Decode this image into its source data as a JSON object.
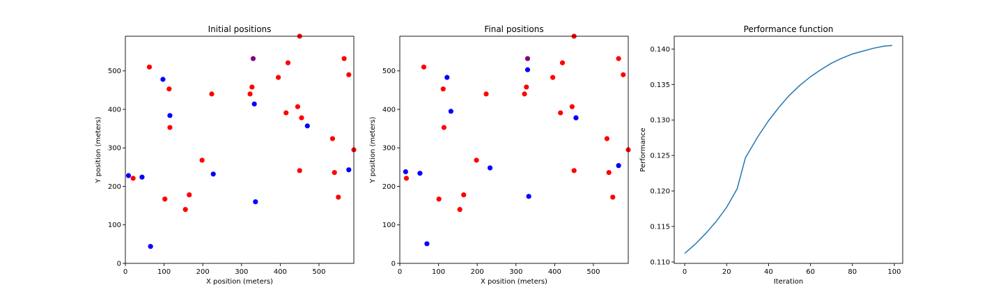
{
  "colors": {
    "red": "#ff0000",
    "blue": "#0000ff",
    "purple": "#800080",
    "line": "#1f77b4"
  },
  "chart_data": [
    {
      "type": "scatter",
      "title": "Initial positions",
      "xlabel": "X position (meters)",
      "ylabel": "Y position (meters)",
      "xlim": [
        0,
        590
      ],
      "ylim": [
        0,
        590
      ],
      "xticks": [
        0,
        100,
        200,
        300,
        400,
        500
      ],
      "yticks": [
        0,
        100,
        200,
        300,
        400,
        500
      ],
      "red_points": [
        [
          20,
          221
        ],
        [
          62,
          510
        ],
        [
          113,
          453
        ],
        [
          115,
          353
        ],
        [
          102,
          167
        ],
        [
          155,
          140
        ],
        [
          165,
          178
        ],
        [
          198,
          268
        ],
        [
          223,
          440
        ],
        [
          322,
          440
        ],
        [
          327,
          458
        ],
        [
          395,
          483
        ],
        [
          420,
          521
        ],
        [
          415,
          391
        ],
        [
          445,
          407
        ],
        [
          455,
          378
        ],
        [
          450,
          241
        ],
        [
          450,
          590
        ],
        [
          535,
          324
        ],
        [
          540,
          236
        ],
        [
          550,
          172
        ],
        [
          565,
          532
        ],
        [
          577,
          490
        ],
        [
          590,
          295
        ]
      ],
      "blue_points": [
        [
          8,
          228
        ],
        [
          43,
          224
        ],
        [
          65,
          44
        ],
        [
          97,
          478
        ],
        [
          115,
          384
        ],
        [
          227,
          232
        ],
        [
          333,
          414
        ],
        [
          336,
          160
        ],
        [
          470,
          357
        ],
        [
          577,
          243
        ]
      ],
      "purple_points": [
        [
          330,
          532
        ]
      ]
    },
    {
      "type": "scatter",
      "title": "Final positions",
      "xlabel": "X position (meters)",
      "ylabel": "Y position (meters)",
      "xlim": [
        0,
        590
      ],
      "ylim": [
        0,
        590
      ],
      "xticks": [
        0,
        100,
        200,
        300,
        400,
        500
      ],
      "yticks": [
        0,
        100,
        200,
        300,
        400,
        500
      ],
      "red_points": [
        [
          17,
          221
        ],
        [
          62,
          510
        ],
        [
          112,
          453
        ],
        [
          114,
          353
        ],
        [
          101,
          167
        ],
        [
          155,
          140
        ],
        [
          165,
          178
        ],
        [
          198,
          268
        ],
        [
          223,
          440
        ],
        [
          322,
          440
        ],
        [
          327,
          458
        ],
        [
          395,
          483
        ],
        [
          420,
          521
        ],
        [
          415,
          391
        ],
        [
          445,
          407
        ],
        [
          455,
          378
        ],
        [
          450,
          241
        ],
        [
          450,
          590
        ],
        [
          535,
          324
        ],
        [
          540,
          236
        ],
        [
          550,
          172
        ],
        [
          565,
          532
        ],
        [
          577,
          490
        ],
        [
          590,
          295
        ]
      ],
      "blue_points": [
        [
          15,
          238
        ],
        [
          52,
          234
        ],
        [
          70,
          51
        ],
        [
          122,
          483
        ],
        [
          132,
          395
        ],
        [
          233,
          248
        ],
        [
          330,
          503
        ],
        [
          333,
          174
        ],
        [
          455,
          378
        ],
        [
          565,
          254
        ]
      ],
      "purple_points": [
        [
          330,
          532
        ]
      ]
    },
    {
      "type": "line",
      "title": "Performance function",
      "xlabel": "Iteration",
      "ylabel": "Performance",
      "xlim": [
        -5,
        104
      ],
      "ylim": [
        0.1098,
        0.1418
      ],
      "xticks": [
        0,
        20,
        40,
        60,
        80,
        100
      ],
      "yticks": [
        "0.110",
        "0.115",
        "0.120",
        "0.125",
        "0.130",
        "0.135",
        "0.140"
      ],
      "series": [
        {
          "x": [
            0,
            5,
            10,
            15,
            20,
            25,
            29,
            30,
            35,
            40,
            45,
            50,
            55,
            60,
            65,
            70,
            75,
            80,
            85,
            90,
            95,
            99
          ],
          "y": [
            0.1112,
            0.1125,
            0.114,
            0.1157,
            0.1177,
            0.1203,
            0.1247,
            0.1252,
            0.1277,
            0.1299,
            0.1318,
            0.1335,
            0.1349,
            0.1361,
            0.1371,
            0.138,
            0.1387,
            0.1393,
            0.1397,
            0.1401,
            0.1404,
            0.1405
          ]
        }
      ]
    }
  ]
}
